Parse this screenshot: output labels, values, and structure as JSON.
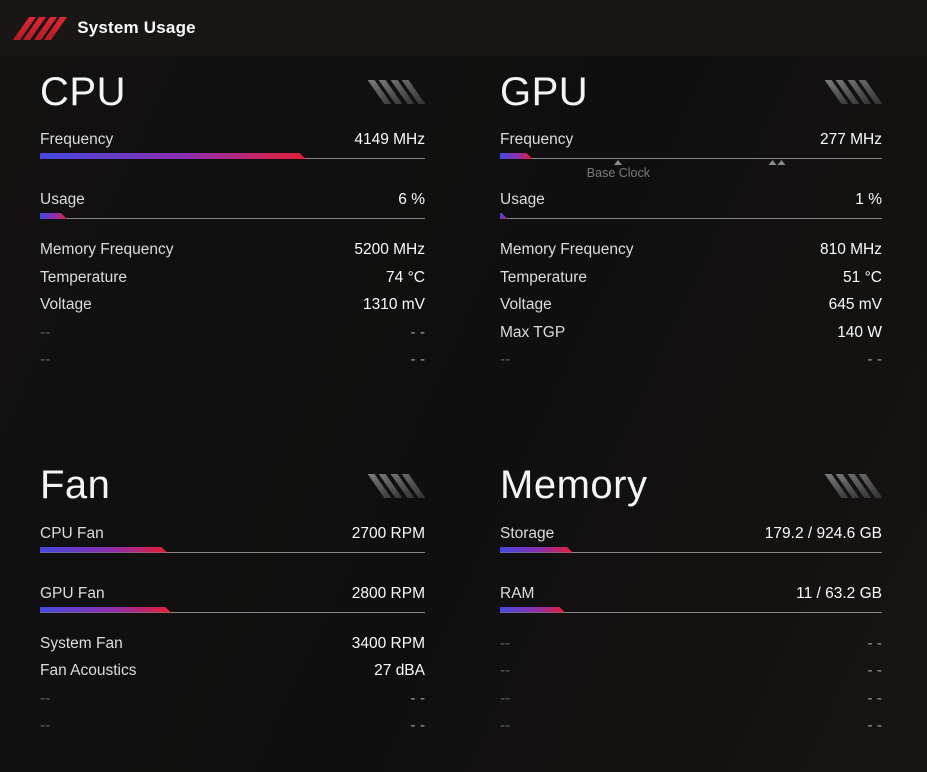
{
  "header": {
    "title": "System Usage"
  },
  "colors": {
    "background": "#121110",
    "header_background": "#181716",
    "accent_red": "#d4212e",
    "bar_gradient": [
      "#4449de",
      "#8c2fae",
      "#e41e35"
    ],
    "track_line": "#878787",
    "label_text": "#dcdcdc",
    "value_text": "#fbfbfb",
    "dim_label_text": "#5e5e5e",
    "dim_value_text": "#9b9b9b",
    "marker_gray": "#8d8d8d"
  },
  "icons": {
    "logo": "red-slashes-icon",
    "section_decoration": "gray-slashes-icon",
    "marker_single": "up-triangle-icon",
    "marker_double": "double-up-triangle-icon"
  },
  "sections": [
    {
      "id": "cpu",
      "title": "CPU",
      "meters": [
        {
          "label": "Frequency",
          "value": "4149 MHz",
          "percent": 69,
          "markers": []
        },
        {
          "label": "Usage",
          "value": "6 %",
          "percent": 7,
          "markers": []
        }
      ],
      "stats": [
        {
          "label": "Memory Frequency",
          "value": "5200 MHz",
          "dim": false
        },
        {
          "label": "Temperature",
          "value": "74 °C",
          "dim": false
        },
        {
          "label": "Voltage",
          "value": "1310 mV",
          "dim": false
        },
        {
          "label": "--",
          "value": "- -",
          "dim": true
        },
        {
          "label": "--",
          "value": "- -",
          "dim": true
        }
      ]
    },
    {
      "id": "gpu",
      "title": "GPU",
      "meters": [
        {
          "label": "Frequency",
          "value": "277 MHz",
          "percent": 8.5,
          "markers": [
            {
              "type": "single",
              "percent": 31,
              "label": "Base Clock"
            },
            {
              "type": "double",
              "percent": 72.5
            }
          ]
        },
        {
          "label": "Usage",
          "value": "1 %",
          "percent": 2,
          "markers": []
        }
      ],
      "stats": [
        {
          "label": "Memory Frequency",
          "value": "810 MHz",
          "dim": false
        },
        {
          "label": "Temperature",
          "value": "51 °C",
          "dim": false
        },
        {
          "label": "Voltage",
          "value": "645 mV",
          "dim": false
        },
        {
          "label": "Max TGP",
          "value": "140 W",
          "dim": false
        },
        {
          "label": "--",
          "value": "- -",
          "dim": true
        }
      ]
    },
    {
      "id": "fan",
      "title": "Fan",
      "meters": [
        {
          "label": "CPU Fan",
          "value": "2700 RPM",
          "percent": 33,
          "markers": []
        },
        {
          "label": "GPU Fan",
          "value": "2800 RPM",
          "percent": 34,
          "markers": []
        }
      ],
      "stats": [
        {
          "label": "System Fan",
          "value": "3400 RPM",
          "dim": false
        },
        {
          "label": "Fan Acoustics",
          "value": "27 dBA",
          "dim": false
        },
        {
          "label": "--",
          "value": "- -",
          "dim": true
        },
        {
          "label": "--",
          "value": "- -",
          "dim": true
        }
      ]
    },
    {
      "id": "memory",
      "title": "Memory",
      "meters": [
        {
          "label": "Storage",
          "value": "179.2 / 924.6 GB",
          "percent": 19,
          "markers": []
        },
        {
          "label": "RAM",
          "value": "11 / 63.2 GB",
          "percent": 17,
          "markers": []
        }
      ],
      "stats": [
        {
          "label": "--",
          "value": "- -",
          "dim": true
        },
        {
          "label": "--",
          "value": "- -",
          "dim": true
        },
        {
          "label": "--",
          "value": "- -",
          "dim": true
        },
        {
          "label": "--",
          "value": "- -",
          "dim": true
        }
      ]
    }
  ]
}
